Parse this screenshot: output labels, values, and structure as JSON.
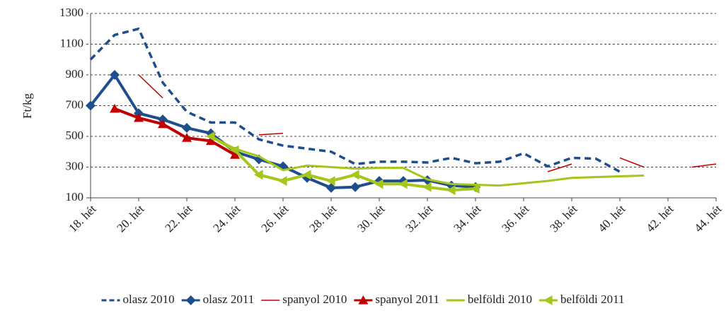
{
  "chart_data": {
    "type": "line",
    "y_label": "Ft/kg",
    "categories": [
      "18. hét",
      null,
      "20. hét",
      null,
      "22. hét",
      null,
      "24. hét",
      null,
      "26. hét",
      null,
      "28. hét",
      null,
      "30. hét",
      null,
      "32. hét",
      null,
      "34. hét",
      null,
      "36. hét",
      null,
      "38. hét",
      null,
      "40. hét",
      null,
      "42. hét",
      null,
      "44. hét"
    ],
    "ylim": [
      100,
      1300
    ],
    "yticks": [
      100,
      300,
      500,
      700,
      900,
      1100,
      1300
    ],
    "grid": true,
    "legend": "bottom",
    "series": [
      {
        "name": "olasz 2010",
        "color": "#1f4e8c",
        "line": "dashed",
        "marker": null,
        "values": [
          1000,
          1160,
          1200,
          850,
          660,
          590,
          590,
          480,
          440,
          420,
          400,
          320,
          335,
          335,
          330,
          360,
          325,
          335,
          390,
          305,
          360,
          355,
          270,
          null,
          null,
          null,
          null
        ]
      },
      {
        "name": "olasz 2011",
        "color": "#1f4e8c",
        "line": "thick",
        "marker": "diamond",
        "values": [
          700,
          900,
          650,
          610,
          555,
          520,
          400,
          350,
          305,
          230,
          165,
          170,
          210,
          210,
          215,
          180,
          170,
          null,
          null,
          null,
          null,
          null,
          null,
          null,
          null,
          null,
          null
        ]
      },
      {
        "name": "spanyol 2010",
        "color": "#c00000",
        "line": "thin",
        "marker": null,
        "values": [
          null,
          null,
          900,
          750,
          null,
          640,
          null,
          510,
          520,
          null,
          null,
          null,
          null,
          null,
          null,
          null,
          null,
          null,
          null,
          270,
          320,
          null,
          360,
          300,
          null,
          300,
          320
        ]
      },
      {
        "name": "spanyol 2011",
        "color": "#c00000",
        "line": "thick",
        "marker": "triangle",
        "values": [
          null,
          680,
          620,
          580,
          490,
          470,
          380,
          null,
          null,
          null,
          null,
          null,
          null,
          null,
          null,
          null,
          null,
          null,
          null,
          null,
          null,
          null,
          null,
          null,
          null,
          null,
          null
        ]
      },
      {
        "name": "belföldi 2010",
        "color": "#a5c61a",
        "line": "solid",
        "marker": null,
        "values": [
          null,
          null,
          null,
          null,
          null,
          500,
          420,
          370,
          280,
          310,
          300,
          290,
          295,
          295,
          220,
          190,
          185,
          180,
          195,
          210,
          230,
          235,
          240,
          245,
          null,
          null,
          null
        ]
      },
      {
        "name": "belföldi 2011",
        "color": "#a5c61a",
        "line": "thick",
        "marker": "left-triangle",
        "values": [
          null,
          null,
          null,
          null,
          null,
          500,
          410,
          250,
          210,
          250,
          210,
          250,
          190,
          190,
          170,
          150,
          160,
          null,
          null,
          null,
          null,
          null,
          null,
          null,
          null,
          null,
          null
        ]
      }
    ]
  }
}
